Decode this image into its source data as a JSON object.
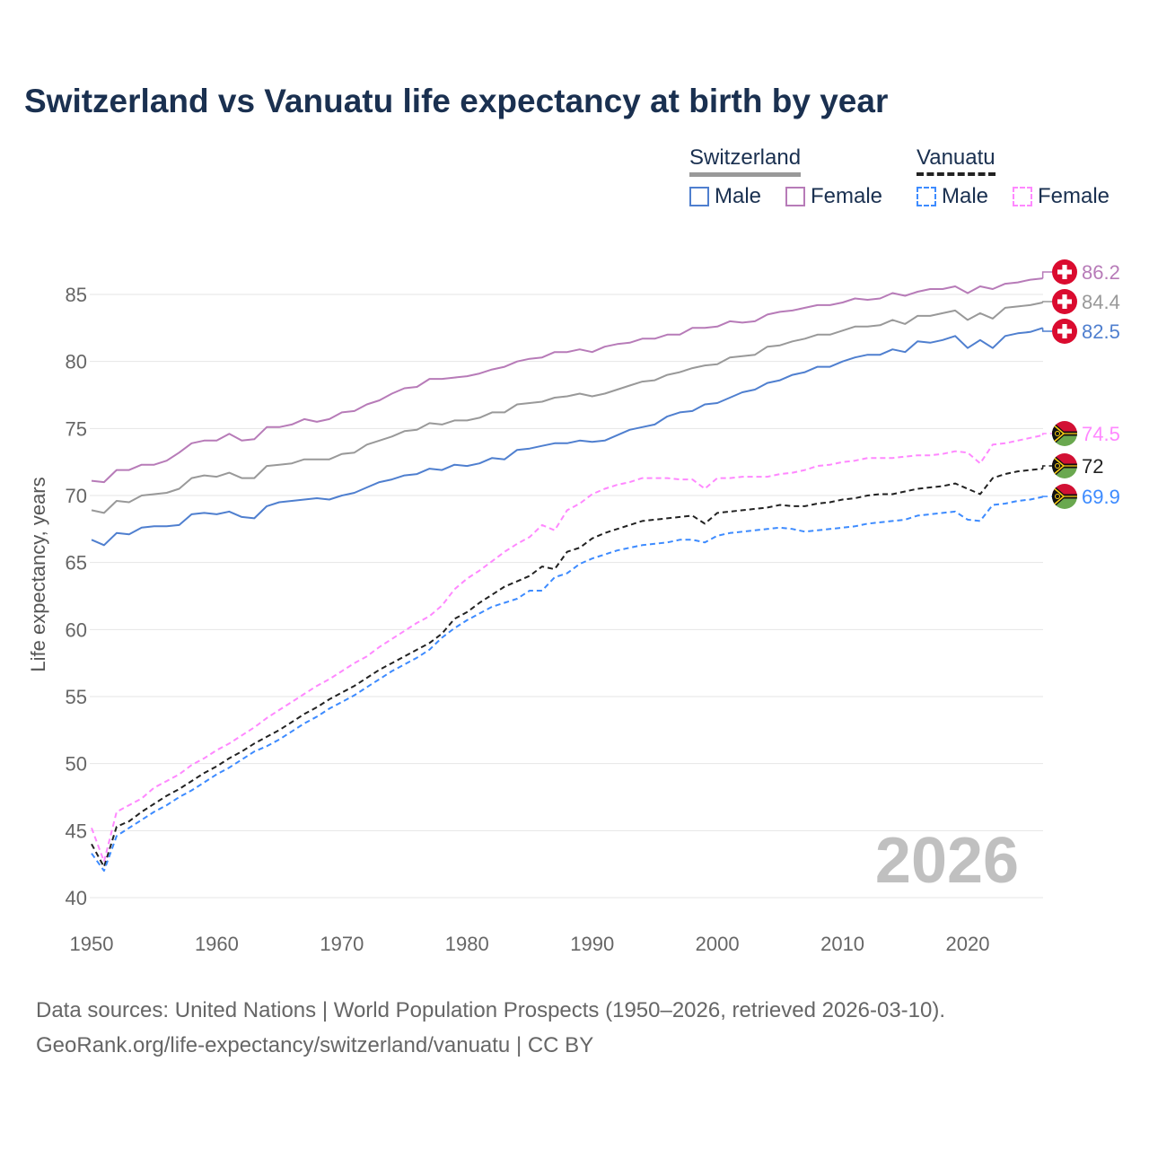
{
  "title": "Switzerland vs Vanuatu life expectancy at birth by year",
  "legend": {
    "switzerland": "Switzerland",
    "vanuatu": "Vanuatu",
    "male": "Male",
    "female": "Female"
  },
  "year_label": "2026",
  "footer": {
    "line1": "Data sources: United Nations | World Population Prospects (1950–2026, retrieved 2026-03-10).",
    "line2": "GeoRank.org/life-expectancy/switzerland/vanuatu | CC BY"
  },
  "chart_data": {
    "type": "line",
    "title": "Switzerland vs Vanuatu life expectancy at birth by year",
    "xlabel": "",
    "ylabel": "Life expectancy, years",
    "xlim": [
      1950,
      2026
    ],
    "ylim": [
      40,
      87
    ],
    "x_start": 1950,
    "xticks": [
      1950,
      1960,
      1970,
      1980,
      1990,
      2000,
      2010,
      2020
    ],
    "yticks": [
      40,
      45,
      50,
      55,
      60,
      65,
      70,
      75,
      80,
      85
    ],
    "grid": true,
    "legend_position": "top-right",
    "series": [
      {
        "name": "Switzerland Female",
        "color": "#b77bb8",
        "dashed": false,
        "end_label": "86.2",
        "flag": "switzerland",
        "values": [
          71.1,
          71.0,
          71.9,
          71.9,
          72.3,
          72.3,
          72.6,
          73.2,
          73.9,
          74.1,
          74.1,
          74.6,
          74.1,
          74.2,
          75.1,
          75.1,
          75.3,
          75.7,
          75.5,
          75.7,
          76.2,
          76.3,
          76.8,
          77.1,
          77.6,
          78.0,
          78.1,
          78.7,
          78.7,
          78.8,
          78.9,
          79.1,
          79.4,
          79.6,
          80.0,
          80.2,
          80.3,
          80.7,
          80.7,
          80.9,
          80.7,
          81.1,
          81.3,
          81.4,
          81.7,
          81.7,
          82.0,
          82.0,
          82.5,
          82.5,
          82.6,
          83.0,
          82.9,
          83.0,
          83.5,
          83.7,
          83.8,
          84.0,
          84.2,
          84.2,
          84.4,
          84.7,
          84.6,
          84.7,
          85.1,
          84.9,
          85.2,
          85.4,
          85.4,
          85.6,
          85.1,
          85.6,
          85.4,
          85.8,
          85.9,
          86.1,
          86.2
        ]
      },
      {
        "name": "Switzerland",
        "color": "#999999",
        "dashed": false,
        "end_label": "84.4",
        "flag": "switzerland",
        "values": [
          68.9,
          68.7,
          69.6,
          69.5,
          70.0,
          70.1,
          70.2,
          70.5,
          71.3,
          71.5,
          71.4,
          71.7,
          71.3,
          71.3,
          72.2,
          72.3,
          72.4,
          72.7,
          72.7,
          72.7,
          73.1,
          73.2,
          73.8,
          74.1,
          74.4,
          74.8,
          74.9,
          75.4,
          75.3,
          75.6,
          75.6,
          75.8,
          76.2,
          76.2,
          76.8,
          76.9,
          77.0,
          77.3,
          77.4,
          77.6,
          77.4,
          77.6,
          77.9,
          78.2,
          78.5,
          78.6,
          79.0,
          79.2,
          79.5,
          79.7,
          79.8,
          80.3,
          80.4,
          80.5,
          81.1,
          81.2,
          81.5,
          81.7,
          82.0,
          82.0,
          82.3,
          82.6,
          82.6,
          82.7,
          83.1,
          82.8,
          83.4,
          83.4,
          83.6,
          83.8,
          83.1,
          83.6,
          83.2,
          84.0,
          84.1,
          84.2,
          84.4
        ]
      },
      {
        "name": "Switzerland Male",
        "color": "#4f7fcf",
        "dashed": false,
        "end_label": "82.5",
        "flag": "switzerland",
        "values": [
          66.7,
          66.3,
          67.2,
          67.1,
          67.6,
          67.7,
          67.7,
          67.8,
          68.6,
          68.7,
          68.6,
          68.8,
          68.4,
          68.3,
          69.2,
          69.5,
          69.6,
          69.7,
          69.8,
          69.7,
          70.0,
          70.2,
          70.6,
          71.0,
          71.2,
          71.5,
          71.6,
          72.0,
          71.9,
          72.3,
          72.2,
          72.4,
          72.8,
          72.7,
          73.4,
          73.5,
          73.7,
          73.9,
          73.9,
          74.1,
          74.0,
          74.1,
          74.5,
          74.9,
          75.1,
          75.3,
          75.9,
          76.2,
          76.3,
          76.8,
          76.9,
          77.3,
          77.7,
          77.9,
          78.4,
          78.6,
          79.0,
          79.2,
          79.6,
          79.6,
          80.0,
          80.3,
          80.5,
          80.5,
          80.9,
          80.7,
          81.5,
          81.4,
          81.6,
          81.9,
          81.0,
          81.6,
          81.0,
          81.9,
          82.1,
          82.2,
          82.5
        ]
      },
      {
        "name": "Vanuatu Female",
        "color": "#ff88ff",
        "dashed": true,
        "end_label": "74.5",
        "flag": "vanuatu",
        "values": [
          45.2,
          42.7,
          46.4,
          46.9,
          47.4,
          48.2,
          48.7,
          49.2,
          49.9,
          50.4,
          51.0,
          51.5,
          52.1,
          52.7,
          53.4,
          54.0,
          54.6,
          55.2,
          55.8,
          56.3,
          56.9,
          57.5,
          58.0,
          58.7,
          59.3,
          59.9,
          60.5,
          61.0,
          61.8,
          63.0,
          63.8,
          64.4,
          65.1,
          65.8,
          66.4,
          66.9,
          67.8,
          67.4,
          68.9,
          69.4,
          70.1,
          70.5,
          70.8,
          71.0,
          71.3,
          71.3,
          71.3,
          71.2,
          71.2,
          70.5,
          71.3,
          71.3,
          71.4,
          71.4,
          71.4,
          71.6,
          71.7,
          71.9,
          72.2,
          72.3,
          72.5,
          72.6,
          72.8,
          72.8,
          72.8,
          72.9,
          73.0,
          73.0,
          73.1,
          73.3,
          73.2,
          72.4,
          73.8,
          73.9,
          74.1,
          74.3,
          74.5
        ]
      },
      {
        "name": "Vanuatu",
        "color": "#222222",
        "dashed": true,
        "end_label": "72",
        "flag": "vanuatu",
        "values": [
          44.0,
          42.3,
          45.3,
          45.7,
          46.4,
          47.0,
          47.6,
          48.1,
          48.7,
          49.3,
          49.8,
          50.4,
          50.9,
          51.5,
          52.0,
          52.5,
          53.1,
          53.7,
          54.2,
          54.8,
          55.3,
          55.8,
          56.4,
          57.0,
          57.5,
          58.0,
          58.5,
          59.0,
          59.7,
          60.8,
          61.3,
          62.0,
          62.6,
          63.2,
          63.6,
          64.0,
          64.7,
          64.5,
          65.8,
          66.1,
          66.8,
          67.2,
          67.5,
          67.8,
          68.1,
          68.2,
          68.3,
          68.4,
          68.5,
          67.9,
          68.7,
          68.8,
          68.9,
          69.0,
          69.1,
          69.3,
          69.2,
          69.2,
          69.4,
          69.5,
          69.7,
          69.8,
          70.0,
          70.1,
          70.1,
          70.3,
          70.5,
          70.6,
          70.7,
          70.9,
          70.5,
          70.1,
          71.3,
          71.6,
          71.8,
          71.9,
          72.0
        ]
      },
      {
        "name": "Vanuatu Male",
        "color": "#3d8bff",
        "dashed": true,
        "end_label": "69.9",
        "flag": "vanuatu",
        "values": [
          43.3,
          42.0,
          44.6,
          45.2,
          45.8,
          46.4,
          46.9,
          47.5,
          48.0,
          48.6,
          49.2,
          49.7,
          50.3,
          50.9,
          51.3,
          51.8,
          52.4,
          53.0,
          53.5,
          54.1,
          54.6,
          55.1,
          55.7,
          56.3,
          56.9,
          57.4,
          57.9,
          58.5,
          59.4,
          60.1,
          60.7,
          61.2,
          61.7,
          62.0,
          62.3,
          62.9,
          62.9,
          63.9,
          64.2,
          64.9,
          65.3,
          65.6,
          65.9,
          66.1,
          66.3,
          66.4,
          66.5,
          66.7,
          66.7,
          66.5,
          67.0,
          67.2,
          67.3,
          67.4,
          67.5,
          67.6,
          67.5,
          67.3,
          67.4,
          67.5,
          67.6,
          67.7,
          67.9,
          68.0,
          68.1,
          68.2,
          68.5,
          68.6,
          68.7,
          68.8,
          68.2,
          68.1,
          69.3,
          69.4,
          69.6,
          69.7,
          69.9
        ]
      }
    ]
  }
}
